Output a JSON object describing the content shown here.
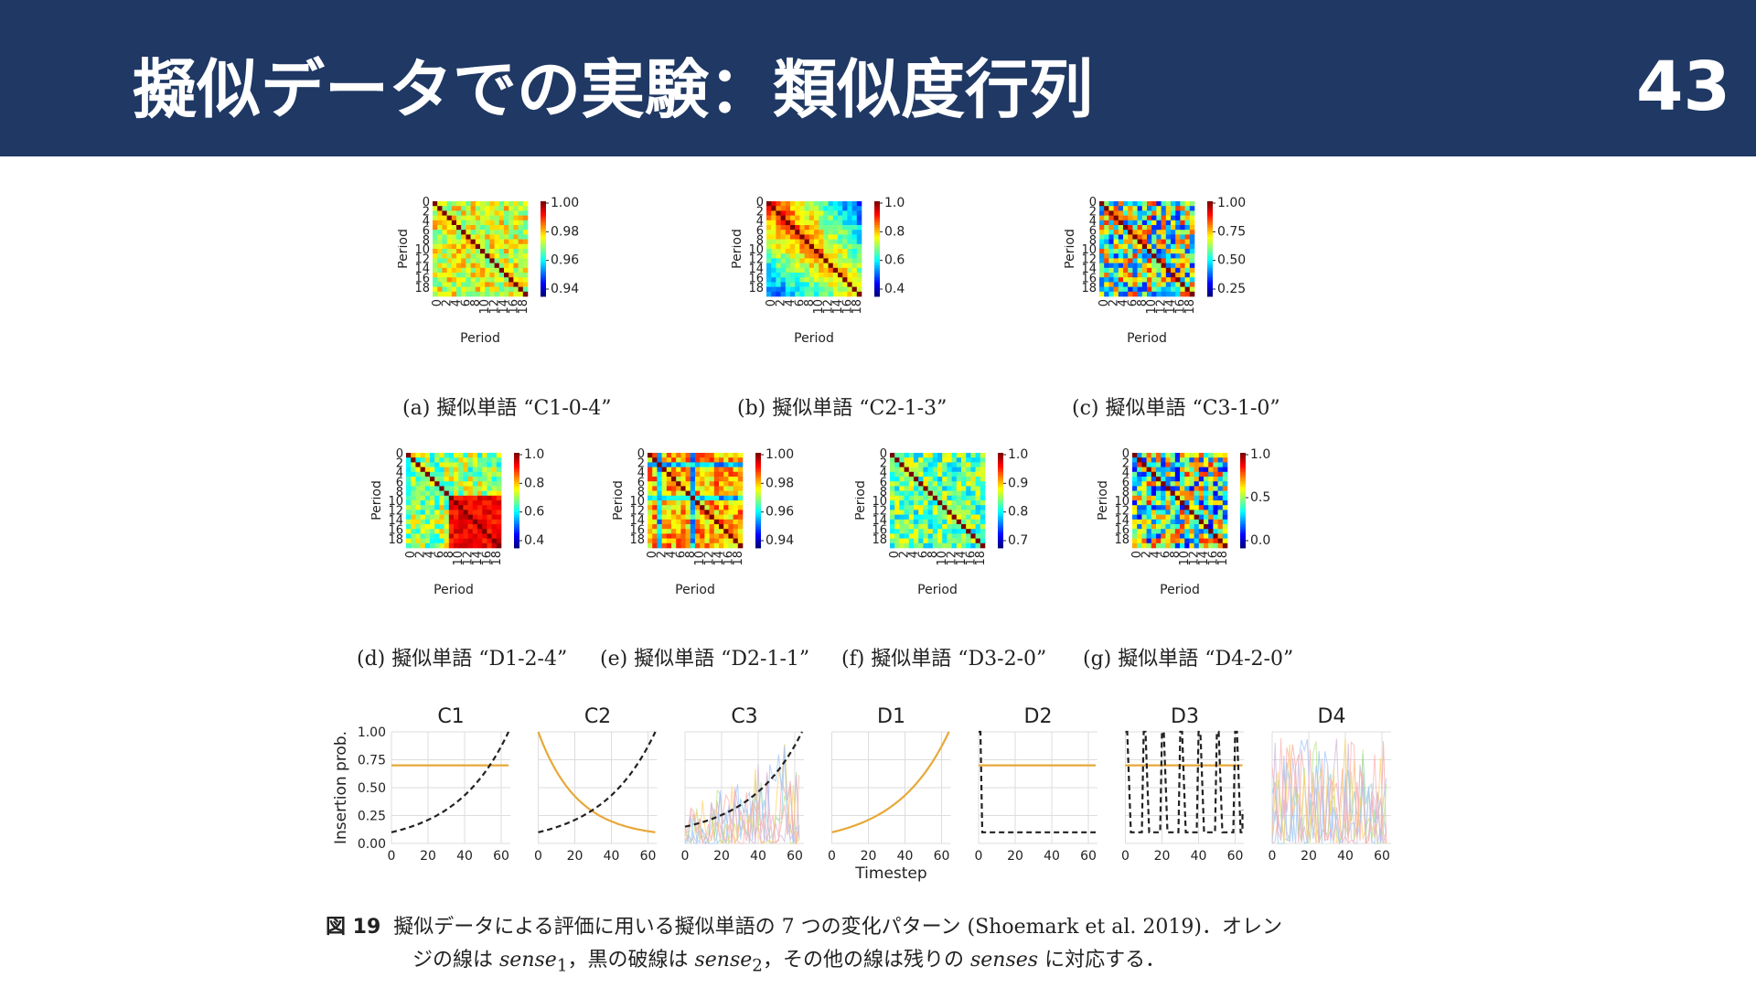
{
  "slide": {
    "title": "擬似データでの実験：類似度行列",
    "page_number": "43"
  },
  "colors": {
    "header_bg": "#1f3864",
    "orange_line": "#e8a838",
    "dashed_line": "#222222"
  },
  "heatmaps": [
    {
      "id": "a",
      "caption": "(a) 擬似単語 “C1-0-4”",
      "ticks": [
        "1.00",
        "0.98",
        "0.96",
        "0.94"
      ],
      "pattern": "C1"
    },
    {
      "id": "b",
      "caption": "(b) 擬似単語 “C2-1-3”",
      "ticks": [
        "1.0",
        "0.8",
        "0.6",
        "0.4"
      ],
      "pattern": "C2"
    },
    {
      "id": "c",
      "caption": "(c) 擬似単語 “C3-1-0”",
      "ticks": [
        "1.00",
        "0.75",
        "0.50",
        "0.25"
      ],
      "pattern": "C3"
    },
    {
      "id": "d",
      "caption": "(d) 擬似単語 “D1-2-4”",
      "ticks": [
        "1.0",
        "0.8",
        "0.6",
        "0.4"
      ],
      "pattern": "D1"
    },
    {
      "id": "e",
      "caption": "(e) 擬似単語 “D2-1-1”",
      "ticks": [
        "1.00",
        "0.98",
        "0.96",
        "0.94"
      ],
      "pattern": "D2"
    },
    {
      "id": "f",
      "caption": "(f) 擬似単語 “D3-2-0”",
      "ticks": [
        "1.0",
        "0.9",
        "0.8",
        "0.7"
      ],
      "pattern": "D3"
    },
    {
      "id": "g",
      "caption": "(g) 擬似単語 “D4-2-0”",
      "ticks": [
        "1.0",
        "0.5",
        "0.0"
      ],
      "pattern": "D4"
    }
  ],
  "heatmap_axis": {
    "label": "Period",
    "ticks": [
      "0",
      "2",
      "4",
      "6",
      "8",
      "10",
      "12",
      "14",
      "16",
      "18"
    ]
  },
  "chart_data": {
    "type": "line",
    "panels": [
      "C1",
      "C2",
      "C3",
      "D1",
      "D2",
      "D3",
      "D4"
    ],
    "ylabel": "Insertion prob.",
    "xlabel": "Timestep",
    "x_ticks": [
      "0",
      "20",
      "40",
      "60"
    ],
    "y_ticks": [
      "0.00",
      "0.25",
      "0.50",
      "0.75",
      "1.00"
    ],
    "xlim": [
      0,
      65
    ],
    "ylim": [
      0,
      1
    ],
    "series": [
      {
        "panel": "C1",
        "name": "sense1",
        "kind": "constant",
        "value": 0.7
      },
      {
        "panel": "C1",
        "name": "sense2",
        "kind": "exp-rise",
        "from": 0.1,
        "to": 1.0
      },
      {
        "panel": "C2",
        "name": "sense1",
        "kind": "exp-decay",
        "from": 1.0,
        "to": 0.1
      },
      {
        "panel": "C2",
        "name": "sense2",
        "kind": "exp-rise",
        "from": 0.1,
        "to": 1.0
      },
      {
        "panel": "C3",
        "name": "sense2",
        "kind": "exp-rise",
        "from": 0.15,
        "to": 1.0
      },
      {
        "panel": "D1",
        "name": "sense1",
        "kind": "exp-rise",
        "from": 0.1,
        "to": 1.0
      },
      {
        "panel": "D2",
        "name": "sense1",
        "kind": "constant",
        "value": 0.7
      },
      {
        "panel": "D2",
        "name": "sense2",
        "kind": "spike-then-low",
        "high": 1.0,
        "low": 0.1
      },
      {
        "panel": "D3",
        "name": "sense1",
        "kind": "constant",
        "value": 0.7
      },
      {
        "panel": "D3",
        "name": "sense2",
        "kind": "periodic-spikes",
        "high": 1.0,
        "low": 0.1
      }
    ]
  },
  "figure_caption": {
    "number": "図 19",
    "line1": "擬似データによる評価に用いる擬似単語の 7 つの変化パターン (Shoemark et al. 2019)．オレン",
    "line2_pre": "ジの線は",
    "sense1": "sense",
    "sub1": "1",
    "line2_mid": "，黒の破線は",
    "sense2": "sense",
    "sub2": "2",
    "line2_mid2": "，その他の線は残りの",
    "senses": "senses",
    "line2_post": "に対応する．"
  }
}
